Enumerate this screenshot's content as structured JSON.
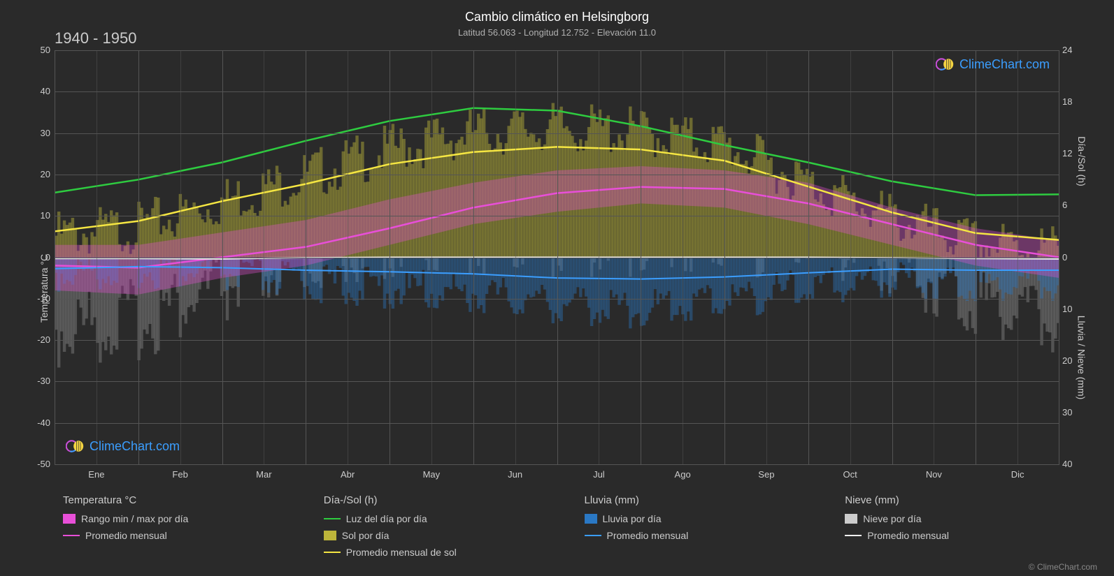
{
  "title": "Cambio climático en Helsingborg",
  "subtitle": "Latitud 56.063 - Longitud 12.752 - Elevación 11.0",
  "year_range": "1940 - 1950",
  "watermark_text": "ClimeChart.com",
  "copyright": "© ClimeChart.com",
  "background_color": "#2a2a2a",
  "grid_color": "#555555",
  "text_color": "#cccccc",
  "chart": {
    "left_axis": {
      "label": "Temperatura °C",
      "min": -50,
      "max": 50,
      "step": 10,
      "ticks": [
        -50,
        -40,
        -30,
        -20,
        -10,
        0,
        10,
        20,
        30,
        40,
        50
      ]
    },
    "right_axis_top": {
      "label": "Día-/Sol (h)",
      "min": 0,
      "max": 24,
      "step": 6,
      "ticks": [
        0,
        6,
        12,
        18,
        24
      ]
    },
    "right_axis_bottom": {
      "label": "Lluvia / Nieve (mm)",
      "min": 0,
      "max": 40,
      "step": 10,
      "ticks": [
        0,
        10,
        20,
        30,
        40
      ]
    },
    "x_axis": {
      "labels": [
        "Ene",
        "Feb",
        "Mar",
        "Abr",
        "May",
        "Jun",
        "Jul",
        "Ago",
        "Sep",
        "Oct",
        "Nov",
        "Dic"
      ]
    },
    "series": {
      "daylight": {
        "color": "#2ecc40",
        "width": 2.5,
        "values_h": [
          7.5,
          9.0,
          11.0,
          13.5,
          15.8,
          17.3,
          17.0,
          15.2,
          13.0,
          11.0,
          8.8,
          7.2,
          7.3
        ]
      },
      "sun_avg": {
        "color": "#f5e642",
        "width": 2.5,
        "values_h": [
          3.0,
          4.2,
          6.5,
          8.5,
          10.8,
          12.2,
          12.8,
          12.5,
          11.2,
          8.2,
          5.2,
          2.8,
          2.0
        ]
      },
      "temp_avg": {
        "color": "#e84fd8",
        "width": 2.5,
        "values_c": [
          -2,
          -2.5,
          0,
          2.5,
          7,
          12,
          15.5,
          17,
          16.5,
          13,
          8,
          3,
          0
        ]
      },
      "rain_avg": {
        "color": "#3b9eff",
        "width": 2,
        "values_mm": [
          2.2,
          1.8,
          2.0,
          2.5,
          2.8,
          3.2,
          4.0,
          4.2,
          3.8,
          3.0,
          2.3,
          2.5,
          2.5
        ]
      },
      "snow_avg_line": {
        "color": "#f0f0f0",
        "width": 2,
        "values_c": [
          -0.3,
          -0.3,
          -0.4,
          -0.1,
          0,
          0,
          0,
          0,
          0,
          0,
          -0.1,
          -0.3,
          -0.4
        ]
      },
      "temp_range_band": {
        "color": "#e84fd8",
        "opacity": 0.35,
        "min_c": [
          -8,
          -9,
          -5,
          -2,
          3,
          8,
          11,
          13,
          12,
          8,
          3,
          -2,
          -5
        ],
        "max_c": [
          3,
          3,
          6,
          9,
          14,
          18,
          21,
          22,
          21,
          18,
          12,
          7,
          4
        ]
      },
      "sun_bars": {
        "color": "#bdb53a",
        "opacity": 0.45,
        "tops_h": [
          4,
          5,
          8,
          11,
          14,
          16,
          16.5,
          16,
          14.5,
          10,
          6,
          3,
          2.5
        ]
      },
      "rain_bars": {
        "color": "#2a78c4",
        "opacity": 0.4,
        "depth_mm": [
          5,
          4,
          5,
          7,
          8,
          9,
          11,
          12,
          10,
          8,
          6,
          7,
          7
        ]
      },
      "snow_bars": {
        "color": "#a0a0a0",
        "opacity": 0.35,
        "depth_mm": [
          18,
          16,
          10,
          3,
          0,
          0,
          0,
          0,
          0,
          0,
          4,
          12,
          16
        ]
      }
    }
  },
  "legend": {
    "groups": [
      {
        "title": "Temperatura °C",
        "items": [
          {
            "type": "swatch",
            "color": "#e84fd8",
            "label": "Rango min / max por día"
          },
          {
            "type": "line",
            "color": "#e84fd8",
            "label": "Promedio mensual"
          }
        ]
      },
      {
        "title": "Día-/Sol (h)",
        "items": [
          {
            "type": "line",
            "color": "#2ecc40",
            "label": "Luz del día por día"
          },
          {
            "type": "swatch",
            "color": "#bdb53a",
            "label": "Sol por día"
          },
          {
            "type": "line",
            "color": "#f5e642",
            "label": "Promedio mensual de sol"
          }
        ]
      },
      {
        "title": "Lluvia (mm)",
        "items": [
          {
            "type": "swatch",
            "color": "#2a78c4",
            "label": "Lluvia por día"
          },
          {
            "type": "line",
            "color": "#3b9eff",
            "label": "Promedio mensual"
          }
        ]
      },
      {
        "title": "Nieve (mm)",
        "items": [
          {
            "type": "swatch",
            "color": "#cccccc",
            "label": "Nieve por día"
          },
          {
            "type": "line",
            "color": "#f0f0f0",
            "label": "Promedio mensual"
          }
        ]
      }
    ]
  }
}
